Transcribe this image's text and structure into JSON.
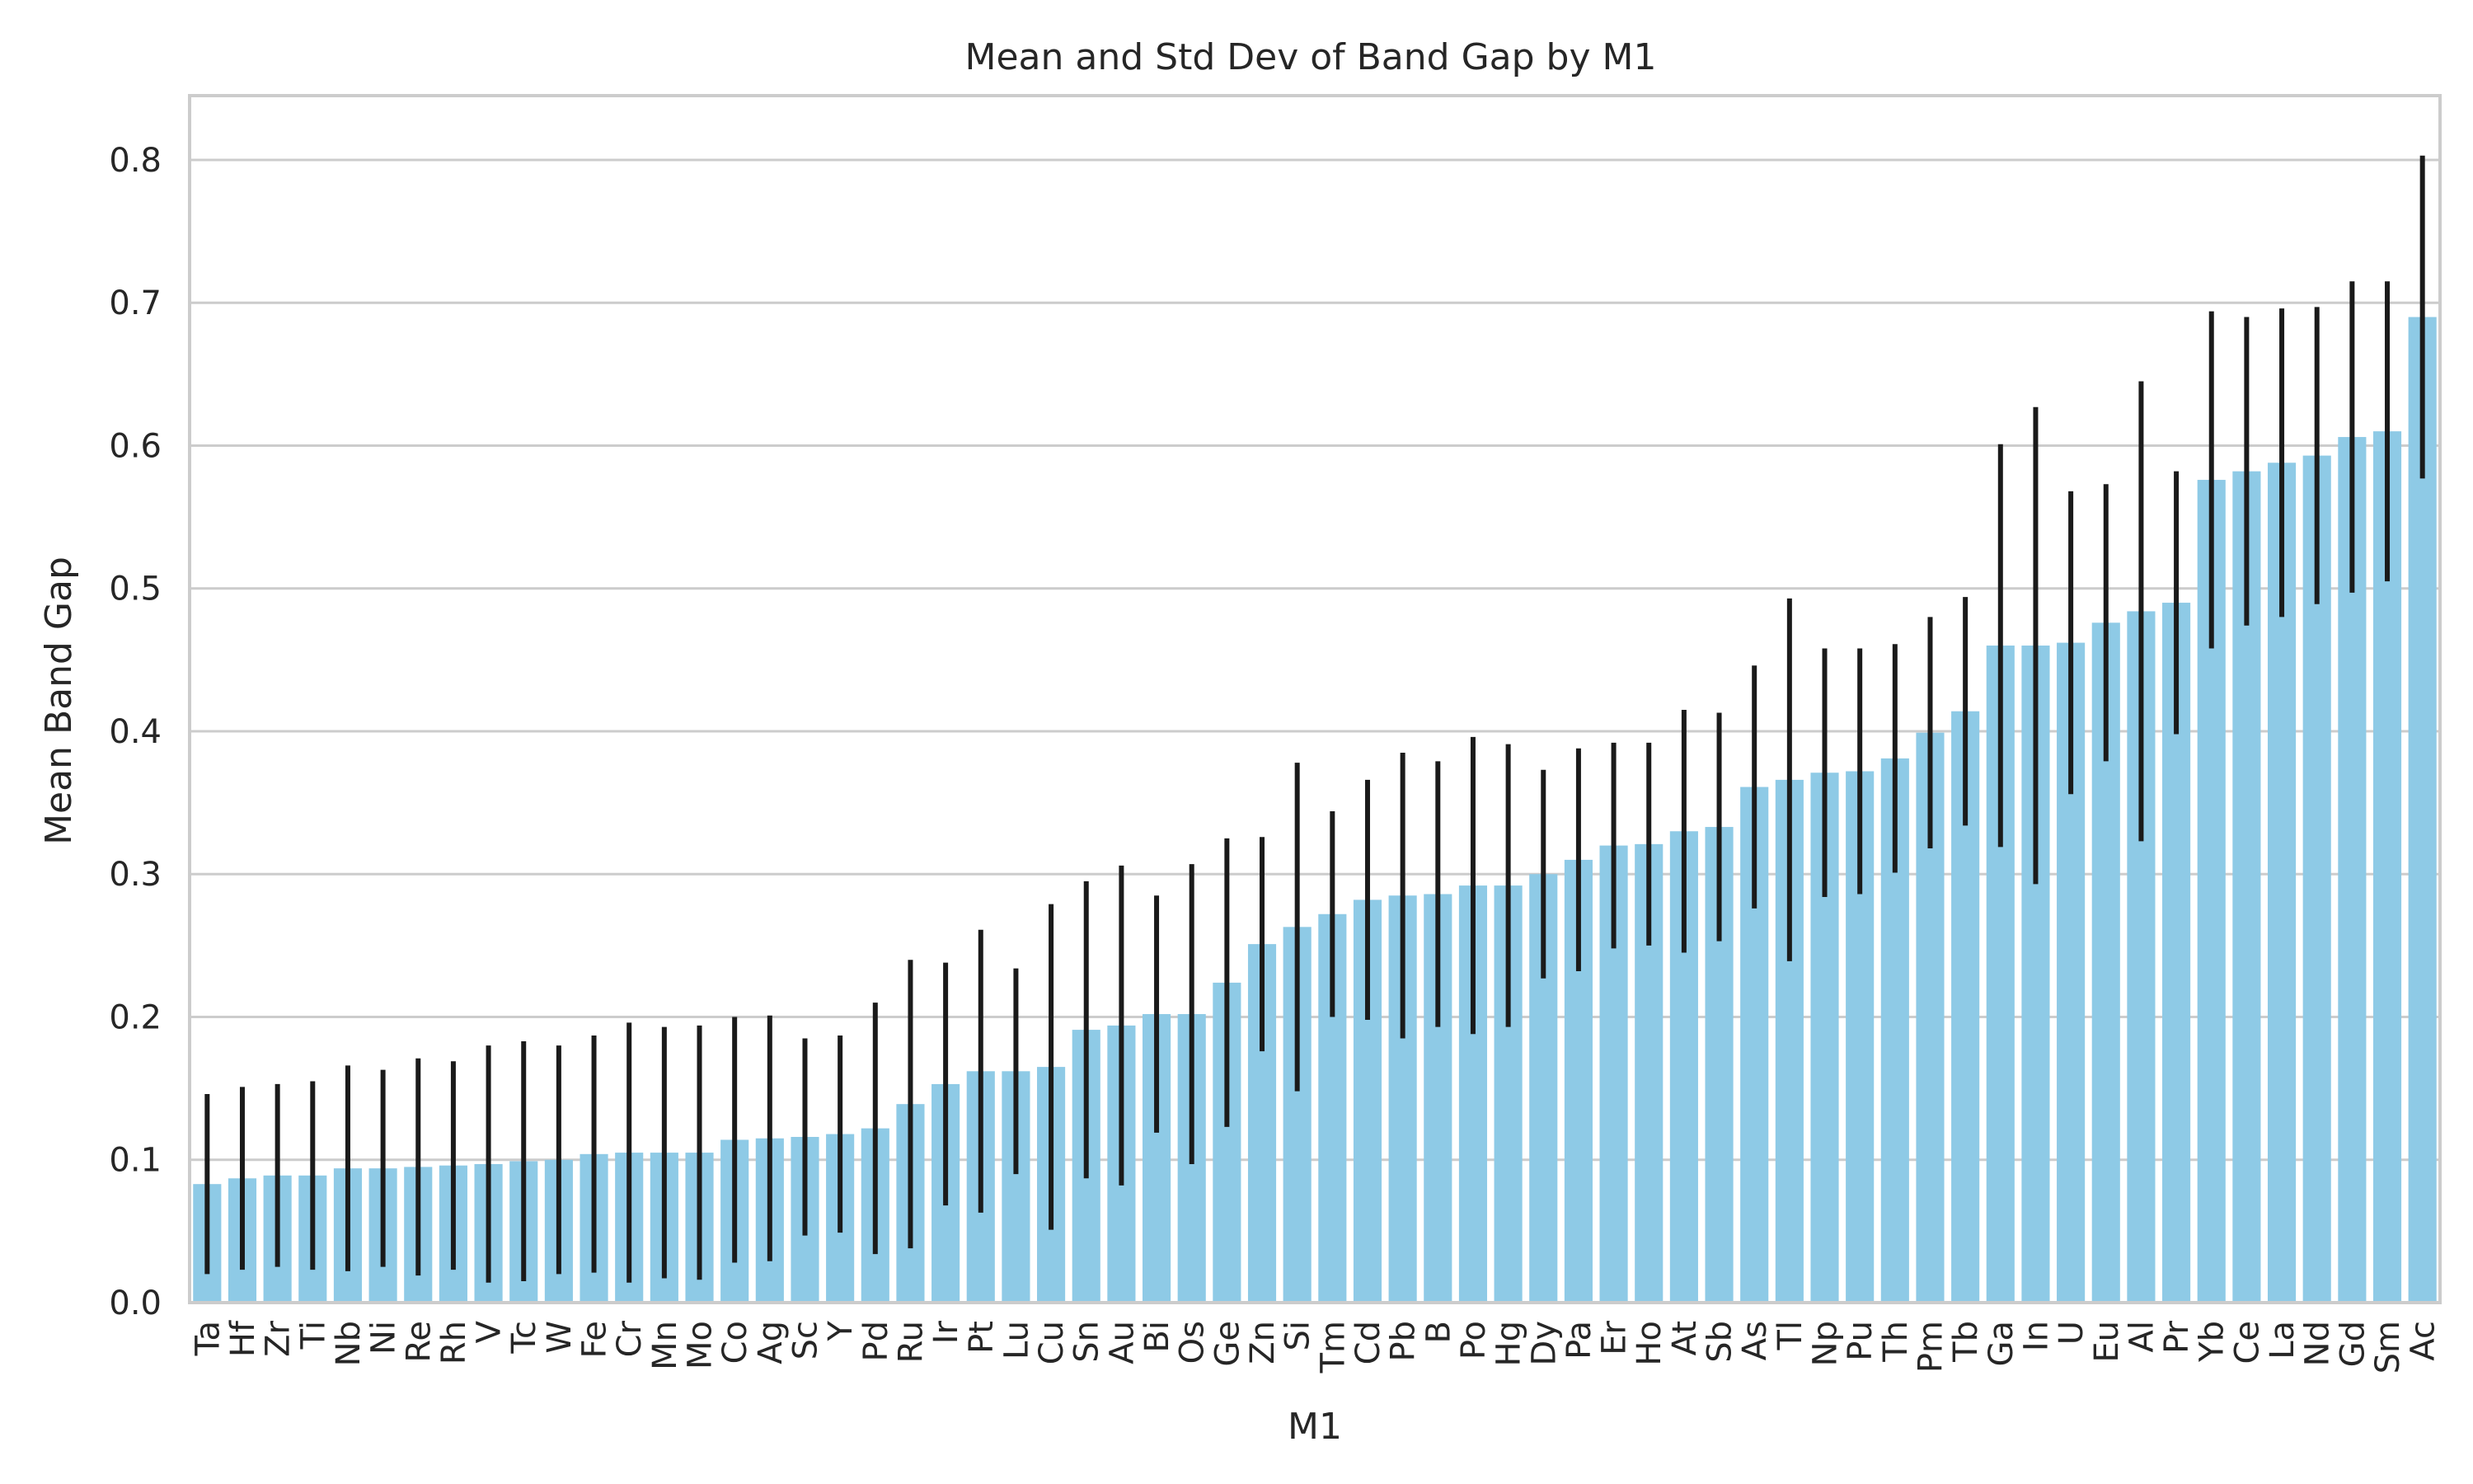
{
  "chart_data": {
    "type": "bar",
    "title": "Mean and Std Dev of Band Gap by M1",
    "xlabel": "M1",
    "ylabel": "Mean Band Gap",
    "ylim": [
      0,
      0.845
    ],
    "yticks": [
      0.0,
      0.1,
      0.2,
      0.3,
      0.4,
      0.5,
      0.6,
      0.7,
      0.8
    ],
    "ytick_labels": [
      "0.0",
      "0.1",
      "0.2",
      "0.3",
      "0.4",
      "0.5",
      "0.6",
      "0.7",
      "0.8"
    ],
    "grid": "horizontal",
    "bar_color": "#8ecae6",
    "error_color": "#1a1a1a",
    "categories": [
      "Ta",
      "Hf",
      "Zr",
      "Ti",
      "Nb",
      "Ni",
      "Re",
      "Rh",
      "V",
      "Tc",
      "W",
      "Fe",
      "Cr",
      "Mn",
      "Mo",
      "Co",
      "Ag",
      "Sc",
      "Y",
      "Pd",
      "Ru",
      "Ir",
      "Pt",
      "Lu",
      "Cu",
      "Sn",
      "Au",
      "Bi",
      "Os",
      "Ge",
      "Zn",
      "Si",
      "Tm",
      "Cd",
      "Pb",
      "B",
      "Po",
      "Hg",
      "Dy",
      "Pa",
      "Er",
      "Ho",
      "At",
      "Sb",
      "As",
      "Tl",
      "Np",
      "Pu",
      "Th",
      "Pm",
      "Tb",
      "Ga",
      "In",
      "U",
      "Eu",
      "Al",
      "Pr",
      "Yb",
      "Ce",
      "La",
      "Nd",
      "Gd",
      "Sm",
      "Ac"
    ],
    "values": [
      0.083,
      0.087,
      0.089,
      0.089,
      0.094,
      0.094,
      0.095,
      0.096,
      0.097,
      0.099,
      0.1,
      0.104,
      0.105,
      0.105,
      0.105,
      0.114,
      0.115,
      0.116,
      0.118,
      0.122,
      0.139,
      0.153,
      0.162,
      0.162,
      0.165,
      0.191,
      0.194,
      0.202,
      0.202,
      0.224,
      0.251,
      0.263,
      0.272,
      0.282,
      0.285,
      0.286,
      0.292,
      0.292,
      0.3,
      0.31,
      0.32,
      0.321,
      0.33,
      0.333,
      0.361,
      0.366,
      0.371,
      0.372,
      0.381,
      0.399,
      0.414,
      0.46,
      0.46,
      0.462,
      0.476,
      0.484,
      0.49,
      0.576,
      0.582,
      0.588,
      0.593,
      0.606,
      0.61,
      0.69
    ],
    "errors": [
      0.063,
      0.064,
      0.064,
      0.066,
      0.072,
      0.069,
      0.076,
      0.073,
      0.083,
      0.084,
      0.08,
      0.083,
      0.091,
      0.088,
      0.089,
      0.086,
      0.086,
      0.069,
      0.069,
      0.088,
      0.101,
      0.085,
      0.099,
      0.072,
      0.114,
      0.104,
      0.112,
      0.083,
      0.105,
      0.101,
      0.075,
      0.115,
      0.072,
      0.084,
      0.1,
      0.093,
      0.104,
      0.099,
      0.073,
      0.078,
      0.072,
      0.071,
      0.085,
      0.08,
      0.085,
      0.127,
      0.087,
      0.086,
      0.08,
      0.081,
      0.08,
      0.141,
      0.167,
      0.106,
      0.097,
      0.161,
      0.092,
      0.118,
      0.108,
      0.108,
      0.104,
      0.109,
      0.105,
      0.113
    ]
  }
}
